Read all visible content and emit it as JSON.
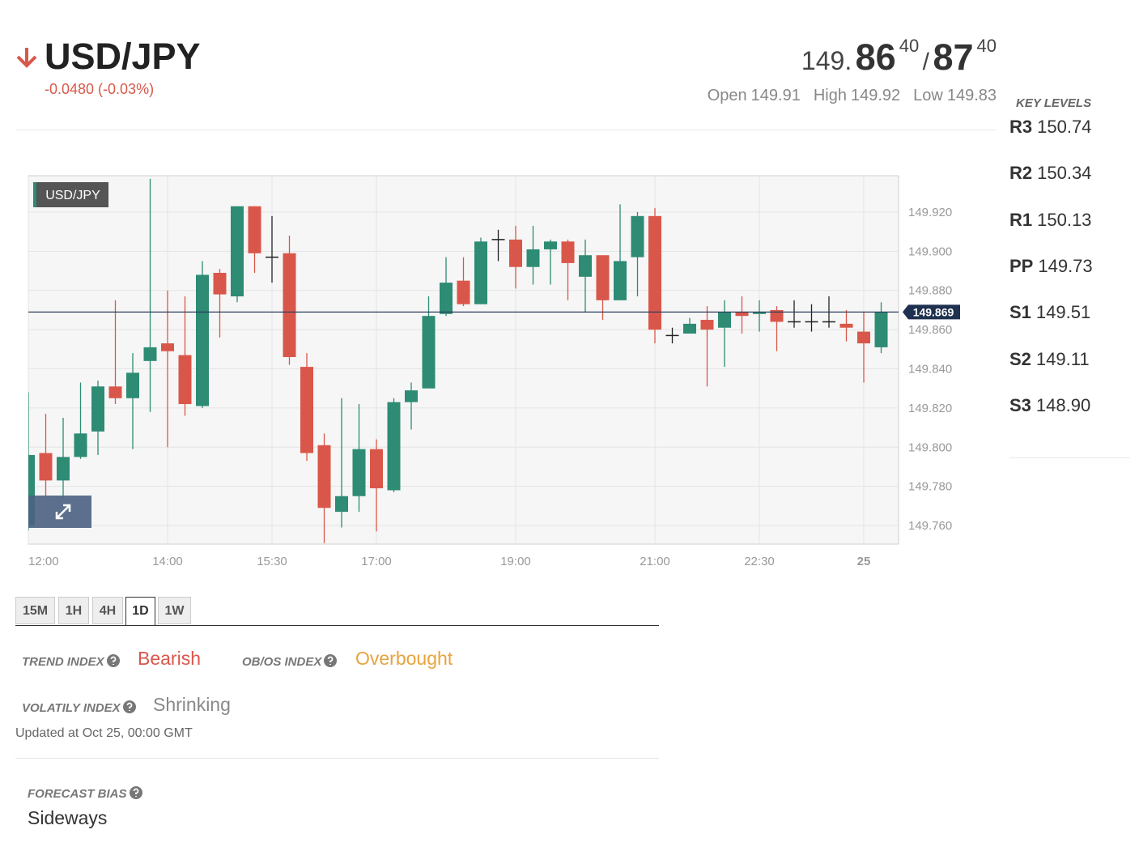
{
  "header": {
    "symbol": "USD/JPY",
    "change": "-0.0480 (-0.03%)",
    "price": {
      "prefix": "149.",
      "bid": "86",
      "bid_pip": "40",
      "separator": "/",
      "ask": "87",
      "ask_pip": "40"
    },
    "stats": [
      {
        "label": "Open",
        "value": "149.91"
      },
      {
        "label": "High",
        "value": "149.92"
      },
      {
        "label": "Low",
        "value": "149.83"
      }
    ]
  },
  "key_levels": {
    "title": "KEY LEVELS",
    "levels": [
      {
        "name": "R3",
        "value": "150.74"
      },
      {
        "name": "R2",
        "value": "150.34"
      },
      {
        "name": "R1",
        "value": "150.13"
      },
      {
        "name": "PP",
        "value": "149.73"
      },
      {
        "name": "S1",
        "value": "149.51"
      },
      {
        "name": "S2",
        "value": "149.11"
      },
      {
        "name": "S3",
        "value": "148.90"
      }
    ]
  },
  "chart_data": {
    "type": "candlestick",
    "label": "USD/JPY",
    "categories": [
      "12:00",
      null,
      null,
      null,
      null,
      null,
      null,
      null,
      "14:00",
      null,
      null,
      null,
      null,
      null,
      "15:30",
      null,
      null,
      null,
      null,
      null,
      "17:00",
      null,
      null,
      null,
      null,
      null,
      null,
      null,
      "19:00",
      null,
      null,
      null,
      null,
      null,
      null,
      null,
      "21:00",
      null,
      null,
      null,
      null,
      null,
      "22:30",
      null,
      null,
      null,
      null,
      null,
      "25",
      null
    ],
    "open": [
      149.76,
      149.797,
      149.783,
      149.795,
      149.808,
      149.831,
      149.825,
      149.844,
      149.853,
      149.847,
      149.821,
      149.889,
      149.877,
      149.923,
      149.897,
      149.899,
      149.841,
      149.801,
      149.767,
      149.775,
      149.799,
      149.778,
      149.823,
      149.83,
      149.868,
      149.885,
      149.873,
      149.906,
      149.906,
      149.892,
      149.901,
      149.905,
      149.887,
      149.898,
      149.875,
      149.897,
      149.918,
      149.857,
      149.858,
      149.865,
      149.861,
      149.869,
      149.868,
      149.87,
      149.864,
      149.864,
      149.864,
      149.863,
      149.859,
      149.851
    ],
    "high": [
      149.828,
      149.817,
      149.815,
      149.833,
      149.834,
      149.875,
      149.848,
      149.937,
      149.88,
      149.877,
      149.895,
      149.891,
      149.923,
      149.923,
      149.918,
      149.908,
      149.848,
      149.807,
      149.825,
      149.822,
      149.804,
      149.825,
      149.833,
      149.877,
      149.897,
      149.897,
      149.907,
      149.911,
      149.913,
      149.913,
      149.906,
      149.906,
      149.906,
      149.898,
      149.924,
      149.92,
      149.922,
      149.861,
      149.866,
      149.872,
      149.875,
      149.877,
      149.875,
      149.872,
      149.875,
      149.873,
      149.877,
      149.87,
      149.869,
      149.874
    ],
    "low": [
      149.7575,
      149.775,
      149.774,
      149.794,
      149.796,
      149.822,
      149.799,
      149.818,
      149.8,
      149.816,
      149.82,
      149.856,
      149.874,
      149.889,
      149.884,
      149.842,
      149.793,
      149.751,
      149.759,
      149.767,
      149.757,
      149.777,
      149.809,
      149.83,
      149.867,
      149.872,
      149.873,
      149.895,
      149.881,
      149.883,
      149.883,
      149.875,
      149.869,
      149.865,
      149.875,
      149.877,
      149.853,
      149.853,
      149.858,
      149.831,
      149.841,
      149.858,
      149.859,
      149.849,
      149.861,
      149.859,
      149.861,
      149.854,
      149.833,
      149.848
    ],
    "close": [
      149.796,
      149.783,
      149.795,
      149.807,
      149.831,
      149.825,
      149.838,
      149.851,
      149.849,
      149.822,
      149.888,
      149.878,
      149.923,
      149.899,
      149.897,
      149.846,
      149.797,
      149.769,
      149.775,
      149.799,
      149.779,
      149.823,
      149.829,
      149.867,
      149.884,
      149.873,
      149.905,
      149.906,
      149.892,
      149.901,
      149.905,
      149.894,
      149.898,
      149.875,
      149.895,
      149.918,
      149.86,
      149.857,
      149.863,
      149.86,
      149.869,
      149.867,
      149.869,
      149.864,
      149.864,
      149.864,
      149.864,
      149.861,
      149.853,
      149.869
    ],
    "up_color": "#2e8b74",
    "down_color": "#d9574a",
    "doji_color": "#222222",
    "ylim": [
      149.7505,
      149.9386
    ],
    "yticks": [
      {
        "value": 149.76,
        "label": "149.760"
      },
      {
        "value": 149.78,
        "label": "149.780"
      },
      {
        "value": 149.8,
        "label": "149.800"
      },
      {
        "value": 149.82,
        "label": "149.820"
      },
      {
        "value": 149.84,
        "label": "149.840"
      },
      {
        "value": 149.86,
        "label": "149.860"
      },
      {
        "value": 149.88,
        "label": "149.880"
      },
      {
        "value": 149.9,
        "label": "149.900"
      },
      {
        "value": 149.92,
        "label": "149.920"
      }
    ],
    "current_price": 149.869,
    "grid": true
  },
  "timeframes": {
    "options": [
      "15M",
      "1H",
      "4H",
      "1D",
      "1W"
    ],
    "active": "1D"
  },
  "indices": {
    "trend": {
      "label": "TREND INDEX",
      "value": "Bearish"
    },
    "ob_os": {
      "label": "OB/OS INDEX",
      "value": "Overbought"
    },
    "volatility": {
      "label": "VOLATILY INDEX",
      "value": "Shrinking"
    },
    "updated": "Updated at Oct 25, 00:00 GMT"
  },
  "forecast": {
    "label": "FORECAST BIAS",
    "value": "Sideways"
  }
}
